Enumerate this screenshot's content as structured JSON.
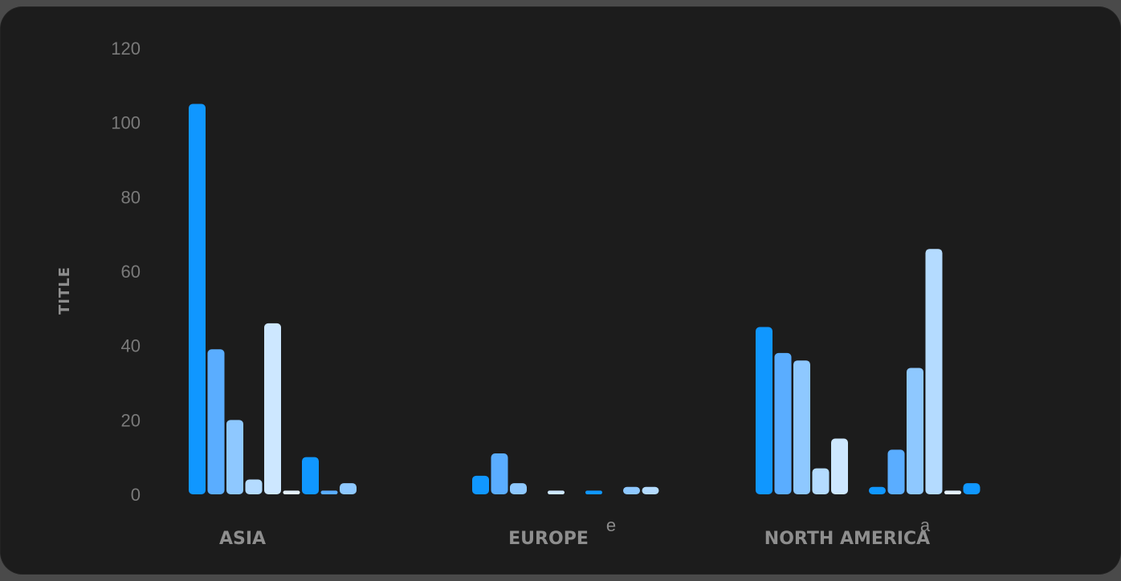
{
  "chart_data": {
    "type": "bar",
    "title": "",
    "xlabel": "",
    "ylabel": "TITLE",
    "ylim": [
      0,
      120
    ],
    "yticks": [
      0,
      20,
      40,
      60,
      80,
      100,
      120
    ],
    "grid": false,
    "legend": "none",
    "categories": [
      "ASIA",
      "EUROPE",
      "NORTH AMERICA"
    ],
    "stray_labels": [
      "e",
      "a"
    ],
    "colors": [
      "#1097ff",
      "#5aadff",
      "#8ec8ff",
      "#b4dbff",
      "#cde7ff",
      "#e4f1fc",
      "#1097ff",
      "#5aadff",
      "#8ec8ff",
      "#b4dbff",
      "#e4f1fc"
    ],
    "groups": [
      {
        "category": "ASIA",
        "values": [
          105,
          39,
          20,
          4,
          46,
          1,
          10,
          1,
          3
        ]
      },
      {
        "category": "EUROPE",
        "values": [
          5,
          11,
          3,
          0,
          1,
          0,
          1,
          0,
          2,
          2
        ]
      },
      {
        "category": "NORTH AMERICA",
        "values": [
          45,
          38,
          36,
          7,
          15,
          0,
          2,
          12,
          34,
          66,
          1,
          3
        ]
      }
    ]
  }
}
